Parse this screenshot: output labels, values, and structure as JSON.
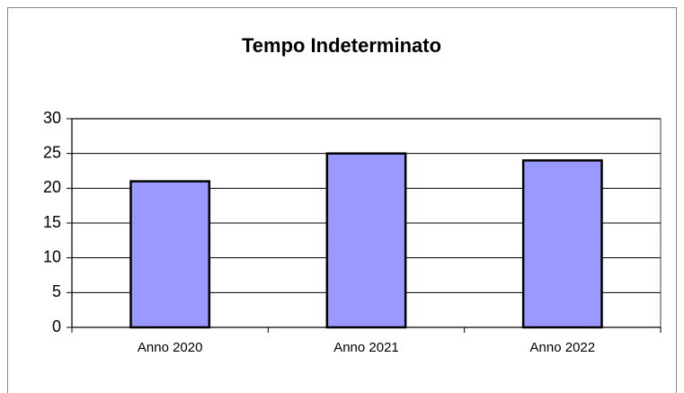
{
  "chart_data": {
    "type": "bar",
    "title": "Tempo Indeterminato",
    "categories": [
      "Anno 2020",
      "Anno 2021",
      "Anno 2022"
    ],
    "values": [
      21,
      25,
      24
    ],
    "color": "#9999ff",
    "ylim": [
      0,
      30
    ],
    "yticks": [
      0,
      5,
      10,
      15,
      20,
      25,
      30
    ],
    "grid": true
  }
}
